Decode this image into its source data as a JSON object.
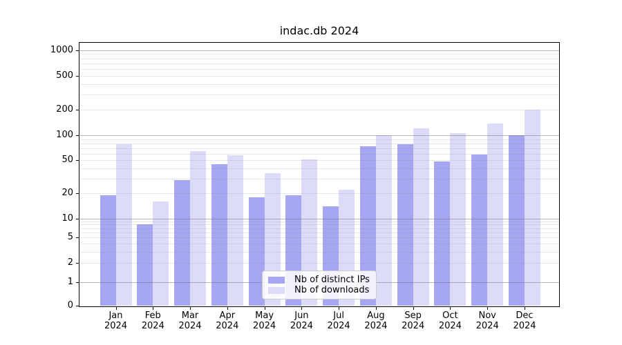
{
  "chart_data": {
    "type": "bar",
    "title": "indac.db 2024",
    "categories": [
      "Jan 2024",
      "Feb 2024",
      "Mar 2024",
      "Apr 2024",
      "May 2024",
      "Jun 2024",
      "Jul 2024",
      "Aug 2024",
      "Sep 2024",
      "Oct 2024",
      "Nov 2024",
      "Dec 2024"
    ],
    "x_tick_months": [
      "Jan",
      "Feb",
      "Mar",
      "Apr",
      "May",
      "Jun",
      "Jul",
      "Aug",
      "Sep",
      "Oct",
      "Nov",
      "Dec"
    ],
    "x_tick_year": "2024",
    "series": [
      {
        "name": "Nb of distinct IPs",
        "color": "#a6a6f2",
        "values": [
          19,
          8,
          29,
          45,
          18,
          19,
          14,
          74,
          78,
          48,
          59,
          100
        ]
      },
      {
        "name": "Nb of downloads",
        "color": "#dcdcf9",
        "values": [
          78,
          16,
          64,
          57,
          35,
          51,
          22,
          100,
          120,
          106,
          137,
          200
        ]
      }
    ],
    "yscale": "symlog",
    "y_ticks": [
      0,
      1,
      2,
      5,
      10,
      20,
      50,
      100,
      200,
      500,
      1000
    ],
    "ylim": [
      0,
      1200
    ],
    "xlabel": "",
    "ylabel": "",
    "grid": true,
    "legend_position": "lower center"
  }
}
